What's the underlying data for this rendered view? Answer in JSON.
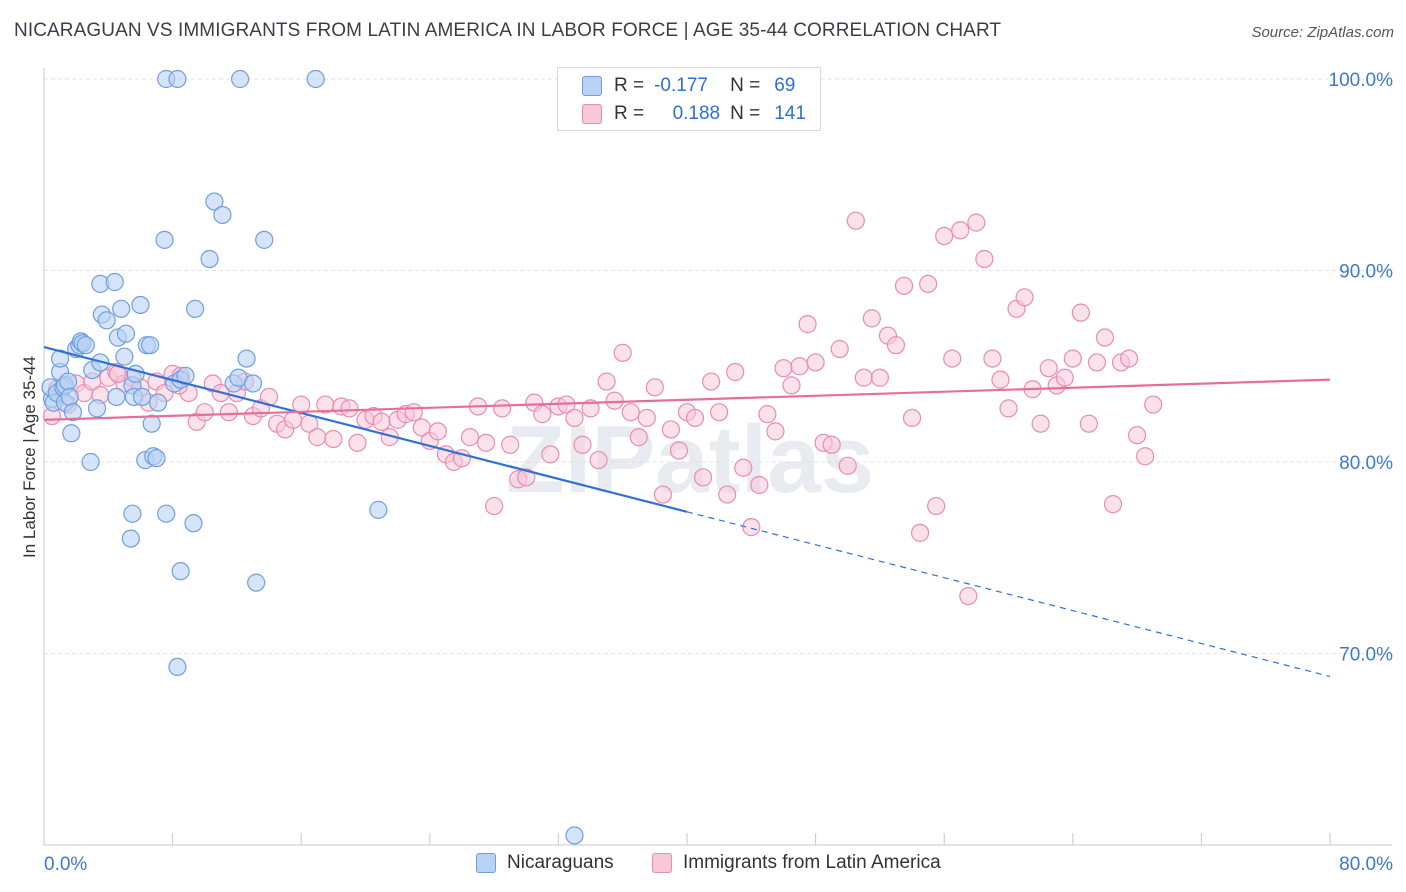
{
  "title": "NICARAGUAN VS IMMIGRANTS FROM LATIN AMERICA IN LABOR FORCE | AGE 35-44 CORRELATION CHART",
  "source": "Source: ZipAtlas.com",
  "watermark": "ZIPatlas",
  "colors": {
    "blue_fill": "#b9d2f3",
    "blue_stroke": "#6f9fe0",
    "blue_line": "#2f72d4",
    "pink_fill": "#f8c8d8",
    "pink_stroke": "#e98db0",
    "pink_line": "#e56f98",
    "axis_text": "#3f78cf",
    "grid": "#e3e3e3"
  },
  "legend_top": {
    "r_label": "R =",
    "n_label": "N =",
    "rows": [
      {
        "series": "blue",
        "r": "-0.177",
        "n": "69"
      },
      {
        "series": "pink",
        "r": "0.188",
        "n": "141"
      }
    ]
  },
  "legend_bottom": [
    {
      "series": "blue",
      "label": "Nicaraguans"
    },
    {
      "series": "pink",
      "label": "Immigrants from Latin America"
    }
  ],
  "chart_data": {
    "type": "scatter",
    "title": "NICARAGUAN VS IMMIGRANTS FROM LATIN AMERICA IN LABOR FORCE | AGE 35-44 CORRELATION CHART",
    "xlabel": "",
    "ylabel": "In Labor Force | Age 35-44",
    "xlim": [
      0,
      80
    ],
    "ylim": [
      60,
      100
    ],
    "x_tick_labels": [
      "0.0%",
      "80.0%"
    ],
    "y_ticks": [
      70,
      80,
      90,
      100
    ],
    "y_tick_labels": [
      "70.0%",
      "80.0%",
      "90.0%",
      "100.0%"
    ],
    "grid": true,
    "legend_position": "bottom",
    "series": [
      {
        "name": "Nicaraguans",
        "color": "blue",
        "r": -0.177,
        "n": 69,
        "trend": {
          "x_start": 0,
          "y_start": 86.0,
          "x_solid_end": 40,
          "y_solid_end": 77.4,
          "x_end": 80,
          "y_end": 68.8
        },
        "points": [
          [
            0.5,
            83.3
          ],
          [
            0.4,
            83.9
          ],
          [
            0.6,
            83.1
          ],
          [
            0.8,
            83.6
          ],
          [
            1.0,
            84.7
          ],
          [
            1.0,
            85.4
          ],
          [
            1.2,
            83.9
          ],
          [
            1.3,
            84.0
          ],
          [
            1.3,
            83.1
          ],
          [
            1.5,
            84.2
          ],
          [
            1.6,
            83.4
          ],
          [
            1.7,
            81.5
          ],
          [
            1.8,
            82.6
          ],
          [
            2.0,
            85.9
          ],
          [
            2.2,
            86.1
          ],
          [
            2.3,
            86.3
          ],
          [
            2.4,
            86.2
          ],
          [
            2.6,
            86.1
          ],
          [
            2.9,
            80.0
          ],
          [
            3.0,
            84.8
          ],
          [
            3.3,
            82.8
          ],
          [
            3.5,
            85.2
          ],
          [
            3.5,
            89.3
          ],
          [
            3.6,
            87.7
          ],
          [
            3.9,
            87.4
          ],
          [
            4.4,
            89.4
          ],
          [
            4.5,
            83.4
          ],
          [
            4.6,
            86.5
          ],
          [
            4.8,
            88.0
          ],
          [
            5.0,
            85.5
          ],
          [
            5.1,
            86.7
          ],
          [
            5.5,
            84.0
          ],
          [
            5.6,
            83.4
          ],
          [
            5.7,
            84.6
          ],
          [
            6.0,
            88.2
          ],
          [
            6.1,
            83.4
          ],
          [
            6.3,
            80.1
          ],
          [
            6.4,
            86.1
          ],
          [
            6.6,
            86.1
          ],
          [
            6.7,
            82.0
          ],
          [
            6.8,
            80.3
          ],
          [
            7.0,
            80.2
          ],
          [
            7.1,
            83.1
          ],
          [
            7.5,
            91.6
          ],
          [
            7.6,
            100.0
          ],
          [
            8.1,
            84.1
          ],
          [
            8.3,
            100.0
          ],
          [
            8.5,
            74.3
          ],
          [
            8.5,
            84.3
          ],
          [
            8.8,
            84.5
          ],
          [
            9.3,
            76.8
          ],
          [
            9.4,
            88.0
          ],
          [
            10.3,
            90.6
          ],
          [
            10.6,
            93.6
          ],
          [
            11.1,
            92.9
          ],
          [
            11.8,
            84.1
          ],
          [
            12.1,
            84.4
          ],
          [
            12.2,
            100.0
          ],
          [
            12.6,
            85.4
          ],
          [
            13.0,
            84.1
          ],
          [
            13.2,
            73.7
          ],
          [
            13.7,
            91.6
          ],
          [
            16.9,
            100.0
          ],
          [
            20.8,
            77.5
          ],
          [
            5.5,
            77.3
          ],
          [
            5.4,
            76.0
          ],
          [
            7.6,
            77.3
          ],
          [
            8.3,
            69.3
          ],
          [
            33.0,
            60.5
          ]
        ]
      },
      {
        "name": "Immigrants from Latin America",
        "color": "pink",
        "r": 0.188,
        "n": 141,
        "trend": {
          "x_start": 0,
          "y_start": 82.2,
          "x_end": 80,
          "y_end": 84.3
        },
        "points": [
          [
            0.5,
            82.4
          ],
          [
            0.8,
            83.8
          ],
          [
            1.0,
            83.5
          ],
          [
            1.5,
            83.0
          ],
          [
            2.0,
            84.1
          ],
          [
            2.5,
            83.6
          ],
          [
            3.0,
            84.2
          ],
          [
            3.5,
            83.5
          ],
          [
            4.0,
            84.4
          ],
          [
            4.5,
            84.7
          ],
          [
            5.0,
            84.1
          ],
          [
            5.5,
            84.4
          ],
          [
            6.0,
            83.9
          ],
          [
            6.5,
            83.1
          ],
          [
            7.0,
            84.2
          ],
          [
            7.5,
            83.6
          ],
          [
            8.0,
            84.6
          ],
          [
            8.5,
            84.5
          ],
          [
            9.0,
            83.6
          ],
          [
            9.5,
            82.1
          ],
          [
            10.0,
            82.6
          ],
          [
            10.5,
            84.1
          ],
          [
            11.0,
            83.6
          ],
          [
            11.5,
            82.6
          ],
          [
            12.0,
            83.6
          ],
          [
            12.5,
            84.2
          ],
          [
            13.0,
            82.4
          ],
          [
            13.5,
            82.8
          ],
          [
            14.0,
            83.4
          ],
          [
            14.5,
            82.0
          ],
          [
            15.0,
            81.7
          ],
          [
            15.5,
            82.2
          ],
          [
            16.0,
            83.0
          ],
          [
            16.5,
            82.0
          ],
          [
            17.0,
            81.3
          ],
          [
            17.5,
            83.0
          ],
          [
            18.0,
            81.2
          ],
          [
            18.5,
            82.9
          ],
          [
            19.0,
            82.8
          ],
          [
            19.5,
            81.0
          ],
          [
            20.0,
            82.2
          ],
          [
            20.5,
            82.4
          ],
          [
            21.0,
            82.1
          ],
          [
            21.5,
            81.3
          ],
          [
            22.0,
            82.2
          ],
          [
            22.5,
            82.5
          ],
          [
            23.0,
            82.6
          ],
          [
            23.5,
            81.8
          ],
          [
            24.0,
            81.1
          ],
          [
            24.5,
            81.6
          ],
          [
            25.0,
            80.4
          ],
          [
            25.5,
            80.0
          ],
          [
            26.0,
            80.2
          ],
          [
            26.5,
            81.3
          ],
          [
            27.0,
            82.9
          ],
          [
            27.5,
            81.0
          ],
          [
            28.0,
            77.7
          ],
          [
            28.5,
            82.8
          ],
          [
            29.0,
            80.9
          ],
          [
            29.5,
            79.1
          ],
          [
            30.0,
            79.2
          ],
          [
            30.5,
            83.1
          ],
          [
            31.0,
            82.5
          ],
          [
            31.5,
            80.4
          ],
          [
            32.0,
            82.9
          ],
          [
            32.5,
            83.0
          ],
          [
            33.0,
            82.3
          ],
          [
            33.5,
            80.9
          ],
          [
            34.0,
            82.8
          ],
          [
            34.5,
            80.1
          ],
          [
            35.0,
            84.2
          ],
          [
            35.5,
            83.2
          ],
          [
            36.0,
            85.7
          ],
          [
            36.5,
            82.6
          ],
          [
            37.0,
            81.3
          ],
          [
            37.5,
            82.3
          ],
          [
            38.0,
            83.9
          ],
          [
            38.5,
            78.3
          ],
          [
            39.0,
            81.7
          ],
          [
            39.5,
            80.6
          ],
          [
            40.0,
            82.6
          ],
          [
            40.5,
            82.3
          ],
          [
            41.0,
            79.2
          ],
          [
            41.5,
            84.2
          ],
          [
            42.0,
            82.6
          ],
          [
            42.5,
            78.3
          ],
          [
            43.0,
            84.7
          ],
          [
            43.5,
            79.7
          ],
          [
            44.0,
            76.6
          ],
          [
            44.5,
            78.8
          ],
          [
            45.0,
            82.5
          ],
          [
            45.5,
            81.6
          ],
          [
            46.0,
            84.9
          ],
          [
            46.5,
            84.0
          ],
          [
            47.0,
            85.0
          ],
          [
            47.5,
            87.2
          ],
          [
            48.0,
            85.2
          ],
          [
            48.5,
            81.0
          ],
          [
            49.0,
            80.9
          ],
          [
            49.5,
            85.9
          ],
          [
            50.0,
            79.8
          ],
          [
            50.5,
            92.6
          ],
          [
            51.0,
            84.4
          ],
          [
            51.5,
            87.5
          ],
          [
            52.0,
            84.4
          ],
          [
            52.5,
            86.6
          ],
          [
            53.0,
            86.1
          ],
          [
            53.5,
            89.2
          ],
          [
            54.0,
            82.3
          ],
          [
            54.5,
            76.3
          ],
          [
            55.0,
            89.3
          ],
          [
            55.5,
            77.7
          ],
          [
            56.0,
            91.8
          ],
          [
            56.5,
            85.4
          ],
          [
            57.0,
            92.1
          ],
          [
            57.5,
            73.0
          ],
          [
            58.0,
            92.5
          ],
          [
            58.5,
            90.6
          ],
          [
            59.0,
            85.4
          ],
          [
            59.5,
            84.3
          ],
          [
            60.0,
            82.8
          ],
          [
            60.5,
            88.0
          ],
          [
            61.0,
            88.6
          ],
          [
            61.5,
            83.8
          ],
          [
            62.0,
            82.0
          ],
          [
            62.5,
            84.9
          ],
          [
            63.0,
            84.0
          ],
          [
            63.5,
            84.4
          ],
          [
            64.0,
            85.4
          ],
          [
            64.5,
            87.8
          ],
          [
            65.0,
            82.0
          ],
          [
            65.5,
            85.2
          ],
          [
            66.0,
            86.5
          ],
          [
            66.5,
            77.8
          ],
          [
            67.0,
            85.2
          ],
          [
            67.5,
            85.4
          ],
          [
            68.0,
            81.4
          ],
          [
            68.5,
            80.3
          ],
          [
            69.0,
            83.0
          ],
          [
            8.4,
            84.0
          ],
          [
            4.6,
            84.6
          ]
        ]
      }
    ]
  }
}
